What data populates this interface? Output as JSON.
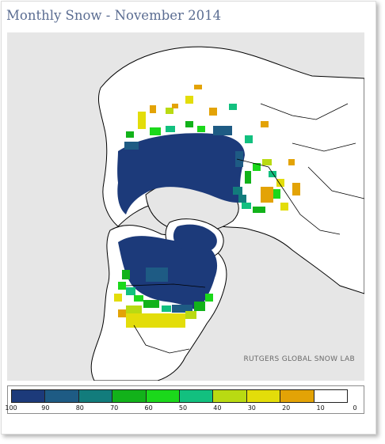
{
  "title": "Monthly Snow - November 2014",
  "credit": "RUTGERS GLOBAL SNOW LAB",
  "legend": {
    "labels": [
      "100",
      "90",
      "80",
      "70",
      "60",
      "50",
      "40",
      "30",
      "20",
      "10",
      "0"
    ],
    "colors": [
      "#1c3a7a",
      "#1e5b84",
      "#127c7c",
      "#12b21a",
      "#1bd81b",
      "#12c07f",
      "#b9da12",
      "#e3dd0a",
      "#e3a306",
      "#ffffff"
    ]
  },
  "colors": {
    "background": "#e6e6e6",
    "land": "#ffffff",
    "borders": "#000000",
    "title": "#5b6d92"
  }
}
